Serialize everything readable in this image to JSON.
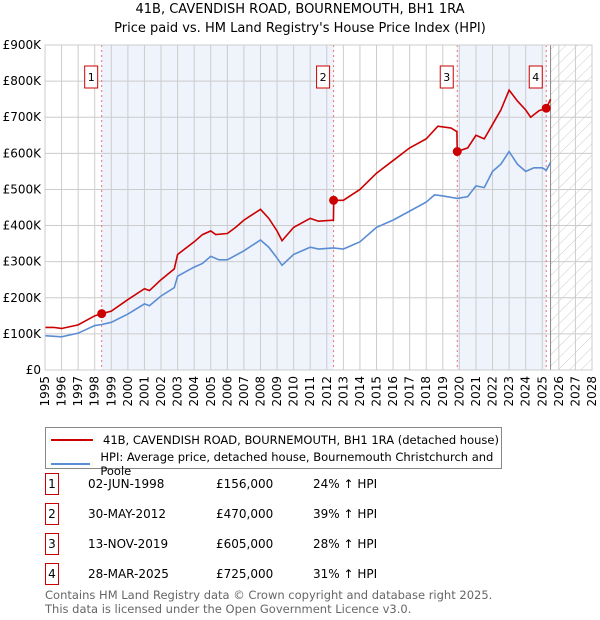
{
  "header": {
    "title": "41B, CAVENDISH ROAD, BOURNEMOUTH, BH1 1RA",
    "subtitle": "Price paid vs. HM Land Registry's House Price Index (HPI)"
  },
  "chart_data": {
    "type": "line",
    "title": "41B, CAVENDISH ROAD, BOURNEMOUTH, BH1 1RA",
    "subtitle": "Price paid vs. HM Land Registry's House Price Index (HPI)",
    "xlim": [
      1995,
      2028
    ],
    "ylim": [
      0,
      900000
    ],
    "x_ticks": [
      "1995",
      "1996",
      "1997",
      "1998",
      "1999",
      "2000",
      "2001",
      "2002",
      "2003",
      "2004",
      "2005",
      "2006",
      "2007",
      "2008",
      "2009",
      "2010",
      "2011",
      "2012",
      "2013",
      "2014",
      "2015",
      "2016",
      "2017",
      "2018",
      "2019",
      "2020",
      "2021",
      "2022",
      "2023",
      "2024",
      "2025",
      "2026",
      "2027",
      "2028"
    ],
    "y_ticks": [
      {
        "v": 0,
        "label": "£0"
      },
      {
        "v": 100000,
        "label": "£100K"
      },
      {
        "v": 200000,
        "label": "£200K"
      },
      {
        "v": 300000,
        "label": "£300K"
      },
      {
        "v": 400000,
        "label": "£400K"
      },
      {
        "v": 500000,
        "label": "£500K"
      },
      {
        "v": 600000,
        "label": "£600K"
      },
      {
        "v": 700000,
        "label": "£700K"
      },
      {
        "v": 800000,
        "label": "£800K"
      },
      {
        "v": 900000,
        "label": "£900K"
      }
    ],
    "grid": true,
    "shaded_ranges": [
      [
        1998.42,
        2012.41
      ],
      [
        2019.87,
        2025.24
      ]
    ],
    "forecast_from": 2025.5,
    "series": [
      {
        "name": "41B, CAVENDISH ROAD, BOURNEMOUTH, BH1 1RA (detached house)",
        "color": "#cc0000",
        "x": [
          1995,
          1995.5,
          1996,
          1997,
          1998,
          1998.42,
          1999,
          2000,
          2001,
          2001.3,
          2002,
          2002.8,
          2003,
          2004,
          2004.5,
          2005,
          2005.3,
          2006,
          2006.5,
          2007,
          2008,
          2008.5,
          2009,
          2009.3,
          2010,
          2011,
          2011.5,
          2012.4,
          2012.42,
          2013,
          2014,
          2015,
          2016,
          2017,
          2018,
          2018.7,
          2019.5,
          2019.85,
          2019.87,
          2020.5,
          2021,
          2021.5,
          2022,
          2022.5,
          2023,
          2023.5,
          2024,
          2024.3,
          2024.8,
          2025.24,
          2025.5
        ],
        "y": [
          118000,
          118000,
          115000,
          125000,
          150000,
          156000,
          163000,
          195000,
          225000,
          220000,
          250000,
          280000,
          320000,
          355000,
          375000,
          385000,
          375000,
          378000,
          395000,
          415000,
          445000,
          420000,
          385000,
          358000,
          395000,
          420000,
          412000,
          415000,
          470000,
          470000,
          500000,
          545000,
          580000,
          615000,
          640000,
          675000,
          670000,
          660000,
          605000,
          615000,
          650000,
          640000,
          680000,
          720000,
          775000,
          745000,
          720000,
          700000,
          718000,
          725000,
          750000
        ]
      },
      {
        "name": "HPI: Average price, detached house, Bournemouth Christchurch and Poole",
        "color": "#5b8dd4",
        "x": [
          1995,
          1996,
          1997,
          1998,
          1998.42,
          1999,
          2000,
          2001,
          2001.3,
          2002,
          2002.8,
          2003,
          2004,
          2004.5,
          2005,
          2005.5,
          2006,
          2007,
          2008,
          2008.5,
          2009,
          2009.3,
          2010,
          2011,
          2011.5,
          2012.4,
          2013,
          2014,
          2015,
          2016,
          2017,
          2018,
          2018.5,
          2019,
          2019.87,
          2020.5,
          2021,
          2021.5,
          2022,
          2022.5,
          2023,
          2023.5,
          2024,
          2024.5,
          2025,
          2025.24,
          2025.5
        ],
        "y": [
          95000,
          92000,
          102000,
          123000,
          126000,
          132000,
          155000,
          183000,
          178000,
          205000,
          228000,
          260000,
          285000,
          295000,
          315000,
          305000,
          305000,
          330000,
          360000,
          340000,
          310000,
          290000,
          320000,
          340000,
          335000,
          338000,
          335000,
          355000,
          395000,
          415000,
          440000,
          465000,
          485000,
          482000,
          475000,
          480000,
          510000,
          505000,
          550000,
          570000,
          605000,
          570000,
          550000,
          560000,
          560000,
          553000,
          575000
        ]
      }
    ],
    "sales": [
      {
        "n": "1",
        "x": 1998.42,
        "y": 156000
      },
      {
        "n": "2",
        "x": 2012.41,
        "y": 470000
      },
      {
        "n": "3",
        "x": 2019.87,
        "y": 605000
      },
      {
        "n": "4",
        "x": 2025.24,
        "y": 725000
      }
    ]
  },
  "legend": {
    "items": [
      {
        "label": "41B, CAVENDISH ROAD, BOURNEMOUTH, BH1 1RA (detached house)",
        "color": "#cc0000"
      },
      {
        "label": "HPI: Average price, detached house, Bournemouth Christchurch and Poole",
        "color": "#5b8dd4"
      }
    ]
  },
  "table": [
    {
      "n": "1",
      "date": "02-JUN-1998",
      "price": "£156,000",
      "hpi": "24% ↑ HPI"
    },
    {
      "n": "2",
      "date": "30-MAY-2012",
      "price": "£470,000",
      "hpi": "39% ↑ HPI"
    },
    {
      "n": "3",
      "date": "13-NOV-2019",
      "price": "£605,000",
      "hpi": "28% ↑ HPI"
    },
    {
      "n": "4",
      "date": "28-MAR-2025",
      "price": "£725,000",
      "hpi": "31% ↑ HPI"
    }
  ],
  "footer": {
    "line1": "Contains HM Land Registry data © Crown copyright and database right 2025.",
    "line2": "This data is licensed under the Open Government Licence v3.0."
  }
}
